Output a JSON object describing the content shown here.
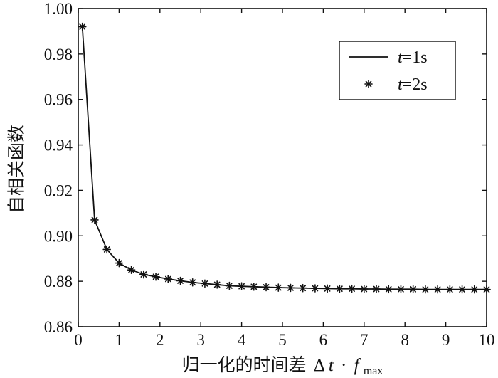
{
  "chart_data": {
    "type": "line",
    "title": "",
    "xlabel": "归一化的时间差",
    "xlabel_math": {
      "delta": "Δ",
      "t": "t",
      "dot": "·",
      "f": "f",
      "sub": "max"
    },
    "ylabel": "自相关函数",
    "xlim": [
      0,
      10
    ],
    "ylim": [
      0.86,
      1.0
    ],
    "x_ticks": [
      0,
      1,
      2,
      3,
      4,
      5,
      6,
      7,
      8,
      9,
      10
    ],
    "x_tick_labels": [
      "0",
      "1",
      "2",
      "3",
      "4",
      "5",
      "6",
      "7",
      "8",
      "9",
      "10"
    ],
    "y_ticks": [
      0.86,
      0.88,
      0.9,
      0.92,
      0.94,
      0.96,
      0.98,
      1.0
    ],
    "y_tick_labels": [
      "0.86",
      "0.88",
      "0.90",
      "0.92",
      "0.94",
      "0.96",
      "0.98",
      "1.00"
    ],
    "grid": false,
    "legend_position": "top-right",
    "x": [
      0.1,
      0.4,
      0.7,
      1.0,
      1.3,
      1.6,
      1.9,
      2.2,
      2.5,
      2.8,
      3.1,
      3.4,
      3.7,
      4.0,
      4.3,
      4.6,
      4.9,
      5.2,
      5.5,
      5.8,
      6.1,
      6.4,
      6.7,
      7.0,
      7.3,
      7.6,
      7.9,
      8.2,
      8.5,
      8.8,
      9.1,
      9.4,
      9.7,
      10.0
    ],
    "series": [
      {
        "name": "t=1s",
        "name_parts": {
          "var": "t",
          "rest": "=1s"
        },
        "style": "line",
        "color": "#111111",
        "values": [
          0.992,
          0.907,
          0.894,
          0.888,
          0.885,
          0.883,
          0.882,
          0.881,
          0.8802,
          0.8795,
          0.879,
          0.8785,
          0.878,
          0.8778,
          0.8776,
          0.8774,
          0.8772,
          0.8771,
          0.877,
          0.8769,
          0.8768,
          0.8767,
          0.8767,
          0.8766,
          0.8766,
          0.8765,
          0.8765,
          0.8765,
          0.8764,
          0.8764,
          0.8764,
          0.8764,
          0.8764,
          0.8764
        ]
      },
      {
        "name": "t=2s",
        "name_parts": {
          "var": "t",
          "rest": "=2s"
        },
        "style": "marker",
        "marker": "asterisk",
        "color": "#111111",
        "values": [
          0.992,
          0.907,
          0.894,
          0.888,
          0.885,
          0.883,
          0.882,
          0.881,
          0.8802,
          0.8795,
          0.879,
          0.8785,
          0.878,
          0.8778,
          0.8776,
          0.8774,
          0.8772,
          0.8771,
          0.877,
          0.8769,
          0.8768,
          0.8767,
          0.8767,
          0.8766,
          0.8766,
          0.8765,
          0.8765,
          0.8765,
          0.8764,
          0.8764,
          0.8764,
          0.8764,
          0.8764,
          0.8764
        ]
      }
    ]
  }
}
